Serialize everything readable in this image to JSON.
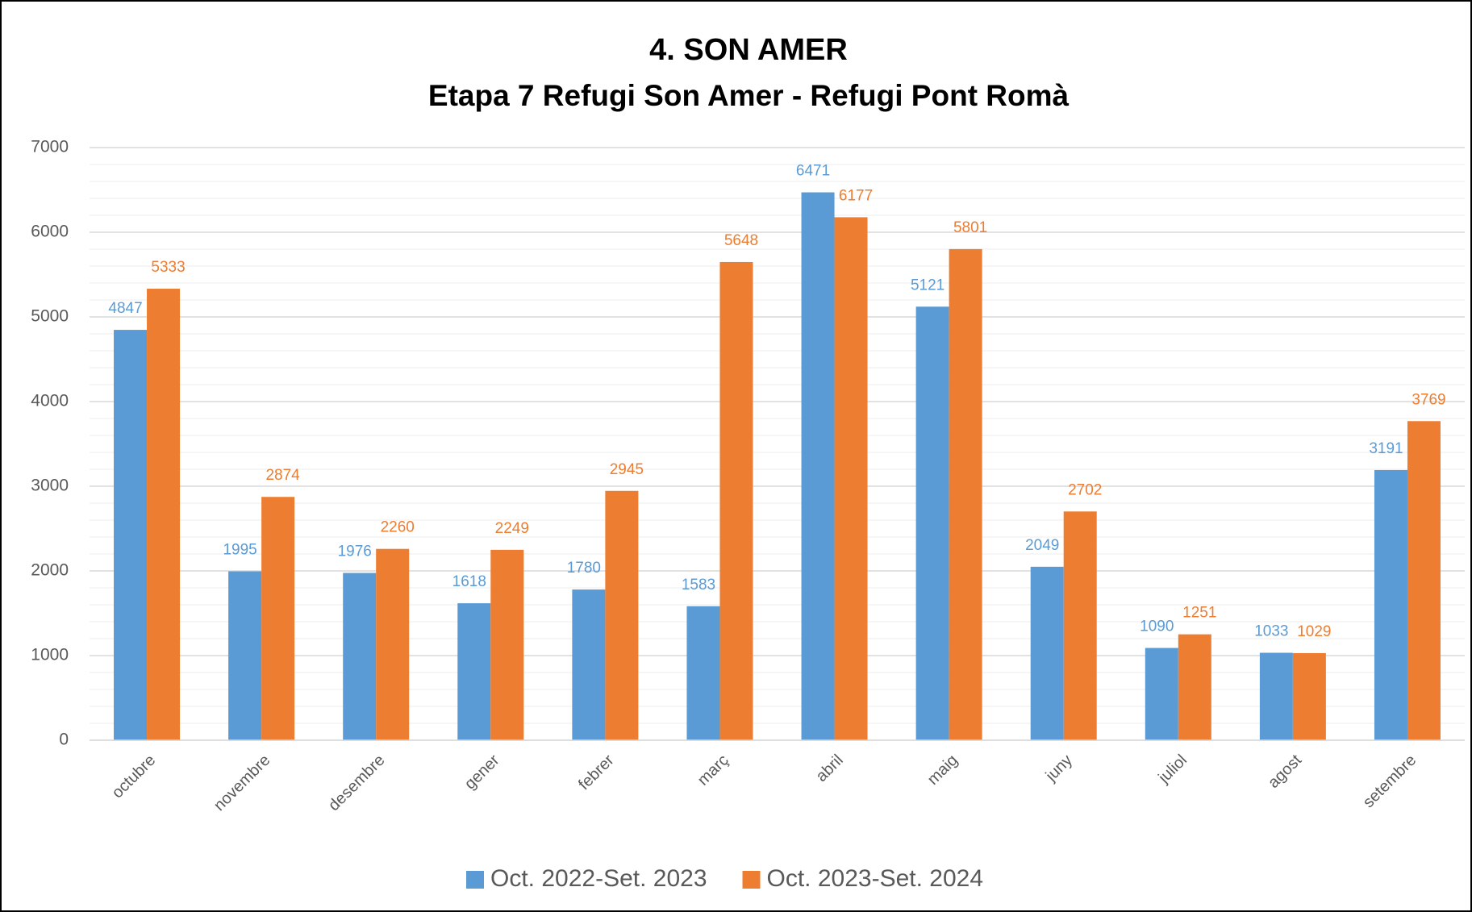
{
  "chart_data": {
    "type": "bar",
    "title": "4. SON AMER",
    "subtitle": "Etapa 7 Refugi Son Amer - Refugi Pont Romà",
    "categories": [
      "octubre",
      "novembre",
      "desembre",
      "gener",
      "febrer",
      "març",
      "abril",
      "maig",
      "juny",
      "juliol",
      "agost",
      "setembre"
    ],
    "series": [
      {
        "name": "Oct. 2022-Set. 2023",
        "color": "#5b9bd5",
        "values": [
          4847,
          1995,
          1976,
          1618,
          1780,
          1583,
          6471,
          5121,
          2049,
          1090,
          1033,
          3191
        ]
      },
      {
        "name": "Oct. 2023-Set. 2024",
        "color": "#ed7d31",
        "values": [
          5333,
          2874,
          2260,
          2249,
          2945,
          5648,
          6177,
          5801,
          2702,
          1251,
          1029,
          3769
        ]
      }
    ],
    "ylim": [
      0,
      7000
    ],
    "yticks": [
      0,
      1000,
      2000,
      3000,
      4000,
      5000,
      6000,
      7000
    ],
    "minor_yticks": [
      200,
      400,
      600,
      800,
      1200,
      1400,
      1600,
      1800,
      2200,
      2400,
      2600,
      2800,
      3200,
      3400,
      3600,
      3800,
      4200,
      4400,
      4600,
      4800,
      5200,
      5400,
      5600,
      5800,
      6200,
      6400,
      6600,
      6800
    ],
    "grid": true,
    "legend": "bottom"
  }
}
